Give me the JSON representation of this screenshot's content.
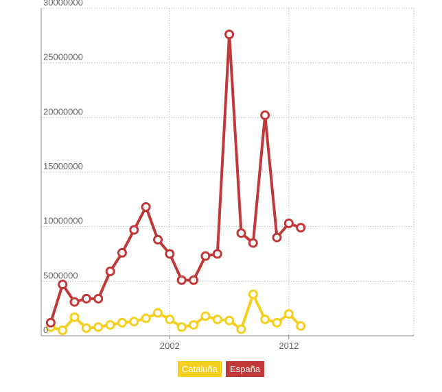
{
  "chart_data": {
    "type": "line",
    "x": [
      1992,
      1993,
      1994,
      1995,
      1996,
      1997,
      1998,
      1999,
      2000,
      2001,
      2002,
      2003,
      2004,
      2005,
      2006,
      2007,
      2008,
      2009,
      2010,
      2011,
      2012,
      2013,
      2014
    ],
    "series": [
      {
        "name": "Cataluña",
        "color": "#f5cf1d",
        "values": [
          800000,
          500000,
          1700000,
          700000,
          800000,
          1000000,
          1200000,
          1300000,
          1600000,
          2100000,
          1500000,
          800000,
          1000000,
          1800000,
          1500000,
          1400000,
          600000,
          3800000,
          1500000,
          1200000,
          2000000,
          900000,
          null
        ]
      },
      {
        "name": "España",
        "color": "#c03838",
        "values": [
          1200000,
          4700000,
          3100000,
          3400000,
          3400000,
          5900000,
          7600000,
          9700000,
          11800000,
          8800000,
          7500000,
          5100000,
          5100000,
          7300000,
          7500000,
          27600000,
          9400000,
          8500000,
          20200000,
          9000000,
          10300000,
          9900000,
          null
        ]
      }
    ],
    "xlim": [
      1991.2,
      2022.5
    ],
    "ylim": [
      0,
      30000000
    ],
    "x_ticks": [
      {
        "value": 2002,
        "label": "2002"
      },
      {
        "value": 2012,
        "label": "2012"
      }
    ],
    "y_ticks": [
      {
        "value": 0,
        "label": "0"
      },
      {
        "value": 5000000,
        "label": "5000000"
      },
      {
        "value": 10000000,
        "label": "10000000"
      },
      {
        "value": 15000000,
        "label": "15000000"
      },
      {
        "value": 20000000,
        "label": "20000000"
      },
      {
        "value": 25000000,
        "label": "25000000"
      },
      {
        "value": 30000000,
        "label": "30000000"
      }
    ],
    "grid": true,
    "legend_position": "bottom-center"
  },
  "legend": {
    "items": [
      {
        "label": "Cataluña",
        "color": "#f5cf1d"
      },
      {
        "label": "España",
        "color": "#c03838"
      }
    ]
  }
}
